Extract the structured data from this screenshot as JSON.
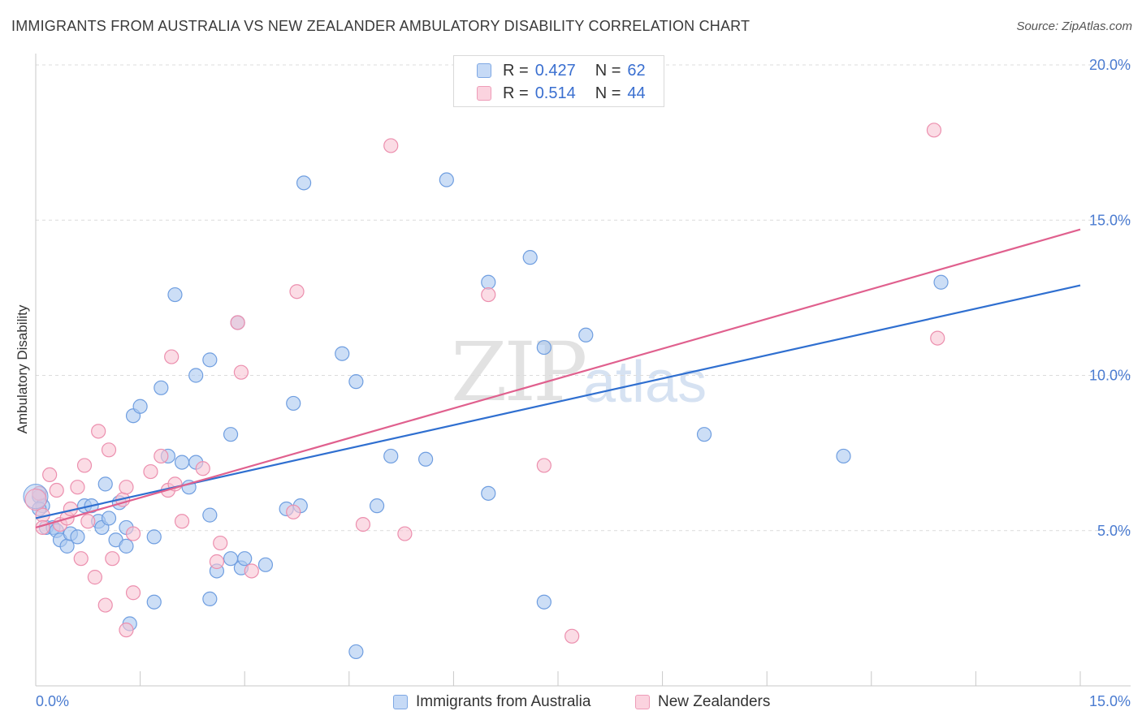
{
  "header": {
    "title": "IMMIGRANTS FROM AUSTRALIA VS NEW ZEALANDER AMBULATORY DISABILITY CORRELATION CHART",
    "source": "Source: ZipAtlas.com"
  },
  "watermark": {
    "zip": "ZIP",
    "atlas": "atlas"
  },
  "legend": {
    "r_label": "R =",
    "n_label": "N =",
    "series": [
      {
        "r": "0.427",
        "n": "62"
      },
      {
        "r": "0.514",
        "n": "44"
      }
    ]
  },
  "bottom_legend": [
    "Immigrants from Australia",
    "New Zealanders"
  ],
  "colors": {
    "blue_fill": "#aac8f0",
    "blue_stroke": "#6f9ee0",
    "blue_line": "#2f6fd0",
    "pink_fill": "#f8c4d4",
    "pink_stroke": "#ec8fae",
    "pink_line": "#e0608e",
    "grid": "#dcdcdc",
    "tick_text": "#4a7bd0"
  },
  "chart_data": {
    "type": "scatter",
    "title": "IMMIGRANTS FROM AUSTRALIA VS NEW ZEALANDER AMBULATORY DISABILITY CORRELATION CHART",
    "xlabel": "",
    "ylabel": "Ambulatory Disability",
    "xlim": [
      0,
      15
    ],
    "ylim": [
      0,
      20
    ],
    "x_tick_labels": [
      "0.0%",
      "15.0%"
    ],
    "y_ticks": [
      5,
      10,
      15,
      20
    ],
    "y_tick_labels": [
      "5.0%",
      "10.0%",
      "15.0%",
      "20.0%"
    ],
    "series": [
      {
        "name": "Immigrants from Australia",
        "r": 0.427,
        "n": 62,
        "trend": [
          [
            0,
            5.4
          ],
          [
            15,
            12.9
          ]
        ],
        "points": [
          [
            0.05,
            6.1
          ],
          [
            0.1,
            5.8
          ],
          [
            0.15,
            5.1
          ],
          [
            0.25,
            5.1
          ],
          [
            0.3,
            5.0
          ],
          [
            0.35,
            4.7
          ],
          [
            0.45,
            4.5
          ],
          [
            0.5,
            4.9
          ],
          [
            0.6,
            4.8
          ],
          [
            0.7,
            5.8
          ],
          [
            0.8,
            5.8
          ],
          [
            0.9,
            5.3
          ],
          [
            0.95,
            5.1
          ],
          [
            1.0,
            6.5
          ],
          [
            1.05,
            5.4
          ],
          [
            1.2,
            5.9
          ],
          [
            1.15,
            4.7
          ],
          [
            1.3,
            5.1
          ],
          [
            1.3,
            4.5
          ],
          [
            1.4,
            8.7
          ],
          [
            1.5,
            9.0
          ],
          [
            1.7,
            4.8
          ],
          [
            1.8,
            9.6
          ],
          [
            1.9,
            7.4
          ],
          [
            2.0,
            12.6
          ],
          [
            2.1,
            7.2
          ],
          [
            2.2,
            6.4
          ],
          [
            2.3,
            10.0
          ],
          [
            2.3,
            7.2
          ],
          [
            2.5,
            2.8
          ],
          [
            2.5,
            10.5
          ],
          [
            2.5,
            5.5
          ],
          [
            2.6,
            3.7
          ],
          [
            2.8,
            8.1
          ],
          [
            2.8,
            4.1
          ],
          [
            2.9,
            11.7
          ],
          [
            2.95,
            3.8
          ],
          [
            3.0,
            4.1
          ],
          [
            3.3,
            3.9
          ],
          [
            3.6,
            5.7
          ],
          [
            3.8,
            5.8
          ],
          [
            3.7,
            9.1
          ],
          [
            3.85,
            16.2
          ],
          [
            4.4,
            10.7
          ],
          [
            4.6,
            9.8
          ],
          [
            4.6,
            1.1
          ],
          [
            4.9,
            5.8
          ],
          [
            5.1,
            7.4
          ],
          [
            5.6,
            7.3
          ],
          [
            5.9,
            16.3
          ],
          [
            6.5,
            13.0
          ],
          [
            6.5,
            6.2
          ],
          [
            7.1,
            13.8
          ],
          [
            7.3,
            10.9
          ],
          [
            7.3,
            2.7
          ],
          [
            7.9,
            11.3
          ],
          [
            9.6,
            8.1
          ],
          [
            11.6,
            7.4
          ],
          [
            13.0,
            13.0
          ],
          [
            1.35,
            2.0
          ],
          [
            1.7,
            2.7
          ],
          [
            0.05,
            5.7
          ]
        ]
      },
      {
        "name": "New Zealanders",
        "r": 0.514,
        "n": 44,
        "trend": [
          [
            0,
            5.1
          ],
          [
            15,
            14.7
          ]
        ],
        "points": [
          [
            0.05,
            6.2
          ],
          [
            0.1,
            5.5
          ],
          [
            0.2,
            6.8
          ],
          [
            0.3,
            6.3
          ],
          [
            0.35,
            5.2
          ],
          [
            0.45,
            5.4
          ],
          [
            0.5,
            5.7
          ],
          [
            0.6,
            6.4
          ],
          [
            0.65,
            4.1
          ],
          [
            0.7,
            7.1
          ],
          [
            0.75,
            5.3
          ],
          [
            0.85,
            3.5
          ],
          [
            0.9,
            8.2
          ],
          [
            1.0,
            2.6
          ],
          [
            1.05,
            7.6
          ],
          [
            1.1,
            4.1
          ],
          [
            1.25,
            6.0
          ],
          [
            1.3,
            6.4
          ],
          [
            1.3,
            1.8
          ],
          [
            1.4,
            3.0
          ],
          [
            1.4,
            4.9
          ],
          [
            1.65,
            6.9
          ],
          [
            1.8,
            7.4
          ],
          [
            1.9,
            6.3
          ],
          [
            1.95,
            10.6
          ],
          [
            2.0,
            6.5
          ],
          [
            2.1,
            5.3
          ],
          [
            2.4,
            7.0
          ],
          [
            2.6,
            4.0
          ],
          [
            2.65,
            4.6
          ],
          [
            2.9,
            11.7
          ],
          [
            2.95,
            10.1
          ],
          [
            3.1,
            3.7
          ],
          [
            3.7,
            5.6
          ],
          [
            3.75,
            12.7
          ],
          [
            4.7,
            5.2
          ],
          [
            5.1,
            17.4
          ],
          [
            5.3,
            4.9
          ],
          [
            6.5,
            12.6
          ],
          [
            7.3,
            7.1
          ],
          [
            7.7,
            1.6
          ],
          [
            0.1,
            5.1
          ],
          [
            12.9,
            17.9
          ],
          [
            12.95,
            11.2
          ]
        ]
      }
    ]
  }
}
